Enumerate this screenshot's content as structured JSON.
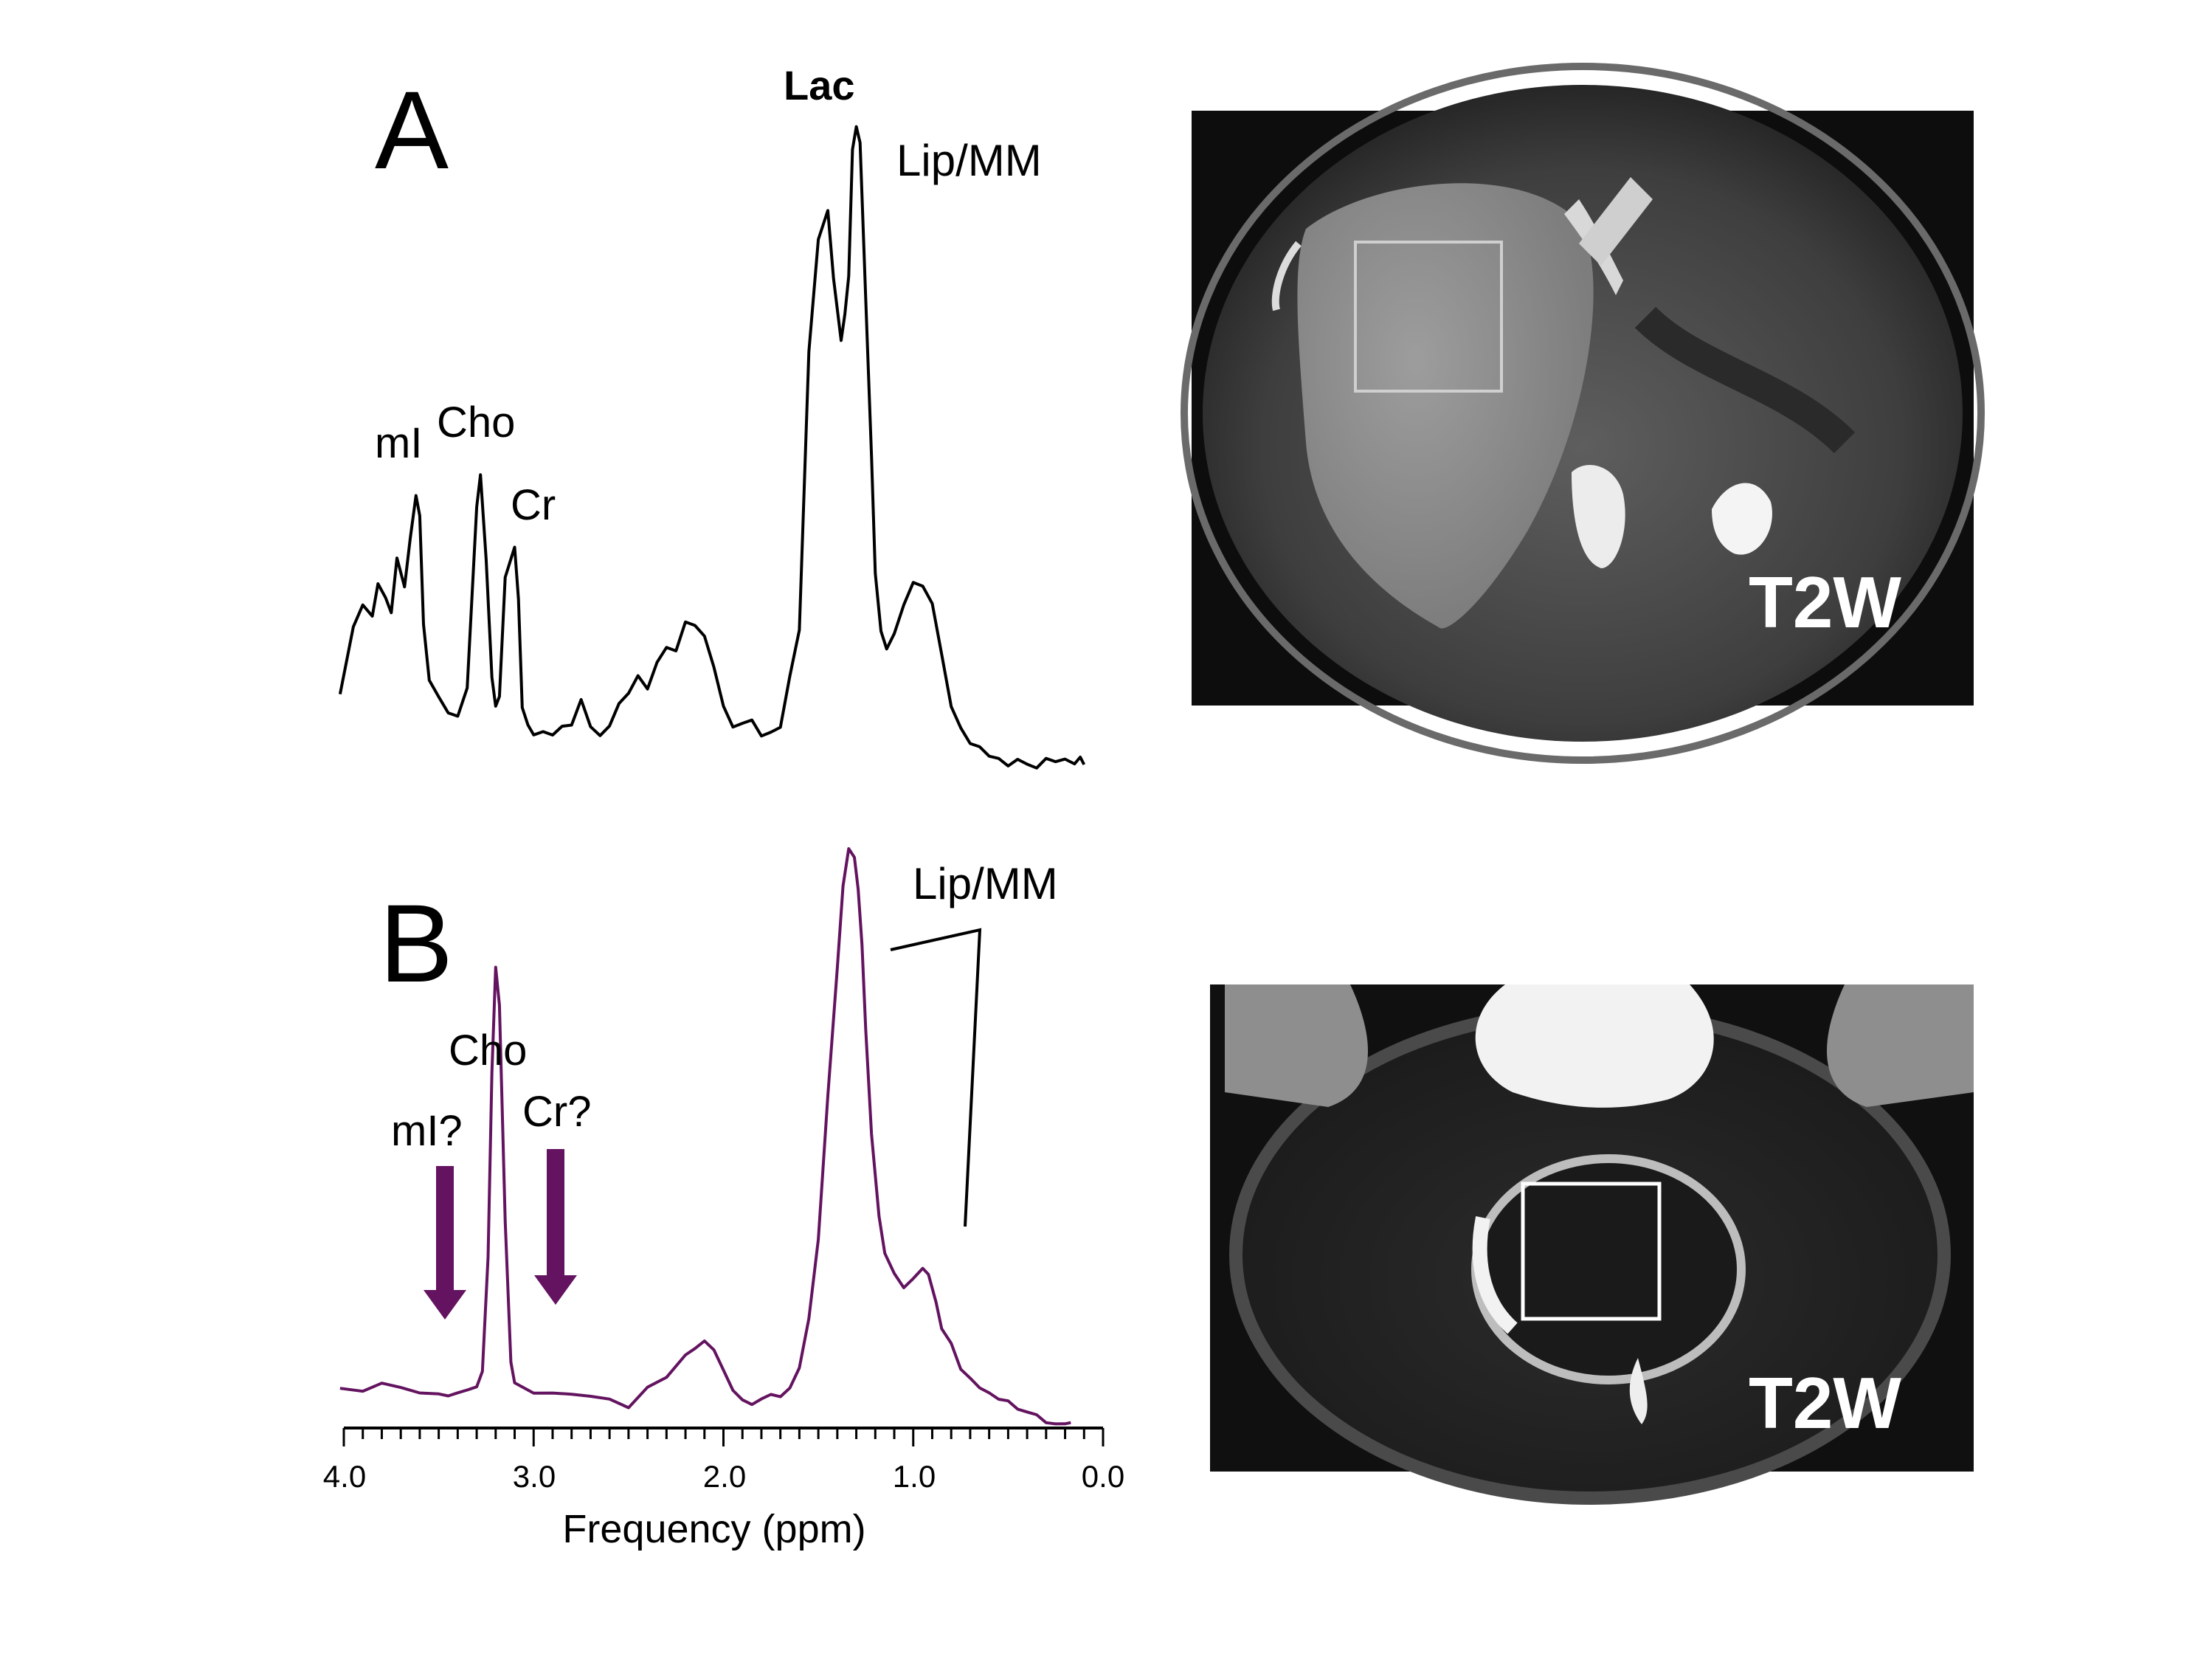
{
  "panels": {
    "a": {
      "letter": "A",
      "labels": {
        "lac": "Lac",
        "lip_mm": "Lip/MM",
        "mi": "mI",
        "cho": "Cho",
        "cr": "Cr"
      },
      "mri": {
        "label": "T2W"
      }
    },
    "b": {
      "letter": "B",
      "labels": {
        "lip_mm": "Lip/MM",
        "cho": "Cho",
        "mi": "mI?",
        "cr": "Cr?"
      },
      "mri": {
        "label": "T2W"
      }
    }
  },
  "colors": {
    "spectrum_a": "#000000",
    "spectrum_b": "#63135f",
    "arrow": "#63135f"
  },
  "chart_data": [
    {
      "type": "line",
      "panel": "A",
      "x_axis": "ppm (reversed)",
      "xlim": [
        4.0,
        0.0
      ],
      "x": [
        4.02,
        3.95,
        3.9,
        3.85,
        3.82,
        3.78,
        3.75,
        3.72,
        3.68,
        3.65,
        3.62,
        3.6,
        3.58,
        3.55,
        3.5,
        3.45,
        3.4,
        3.35,
        3.3,
        3.28,
        3.25,
        3.22,
        3.2,
        3.18,
        3.15,
        3.1,
        3.08,
        3.06,
        3.03,
        3.0,
        2.95,
        2.9,
        2.85,
        2.8,
        2.75,
        2.7,
        2.65,
        2.6,
        2.55,
        2.5,
        2.45,
        2.4,
        2.35,
        2.3,
        2.25,
        2.2,
        2.15,
        2.1,
        2.05,
        2.0,
        1.95,
        1.9,
        1.85,
        1.8,
        1.75,
        1.7,
        1.65,
        1.6,
        1.55,
        1.5,
        1.45,
        1.42,
        1.38,
        1.36,
        1.34,
        1.32,
        1.3,
        1.28,
        1.25,
        1.22,
        1.2,
        1.17,
        1.14,
        1.1,
        1.05,
        1.0,
        0.95,
        0.9,
        0.85,
        0.8,
        0.75,
        0.7,
        0.65,
        0.6,
        0.55,
        0.5,
        0.45,
        0.4,
        0.35,
        0.3,
        0.25,
        0.2,
        0.15,
        0.12,
        0.1
      ],
      "y": [
        0.12,
        0.22,
        0.25,
        0.23,
        0.28,
        0.26,
        0.24,
        0.33,
        0.29,
        0.37,
        0.44,
        0.41,
        0.24,
        0.15,
        0.12,
        0.09,
        0.08,
        0.12,
        0.4,
        0.45,
        0.32,
        0.14,
        0.1,
        0.12,
        0.31,
        0.36,
        0.28,
        0.11,
        0.08,
        0.06,
        0.06,
        0.05,
        0.06,
        0.06,
        0.1,
        0.06,
        0.05,
        0.07,
        0.11,
        0.13,
        0.16,
        0.14,
        0.18,
        0.2,
        0.19,
        0.23,
        0.22,
        0.2,
        0.15,
        0.09,
        0.06,
        0.07,
        0.08,
        0.06,
        0.07,
        0.08,
        0.16,
        0.23,
        0.66,
        0.83,
        0.87,
        0.76,
        0.66,
        0.7,
        0.76,
        0.96,
        1.0,
        0.98,
        0.74,
        0.5,
        0.32,
        0.23,
        0.2,
        0.22,
        0.26,
        0.29,
        0.28,
        0.25,
        0.17,
        0.09,
        0.06,
        0.04,
        0.04,
        0.03,
        0.03,
        0.02,
        0.03,
        0.02,
        0.01,
        0.02,
        0.01,
        0.01,
        0.0,
        0.01,
        0.0
      ]
    },
    {
      "type": "line",
      "panel": "B",
      "xlabel": "Frequency (ppm)",
      "xlim": [
        4.0,
        0.0
      ],
      "x_ticks": [
        "4.0",
        "3.0",
        "2.0",
        "1.0",
        "0.0"
      ],
      "x": [
        4.02,
        3.9,
        3.8,
        3.7,
        3.6,
        3.5,
        3.45,
        3.4,
        3.35,
        3.3,
        3.27,
        3.24,
        3.22,
        3.2,
        3.18,
        3.15,
        3.12,
        3.1,
        3.0,
        2.9,
        2.8,
        2.7,
        2.6,
        2.5,
        2.4,
        2.3,
        2.2,
        2.15,
        2.1,
        2.05,
        2.0,
        1.95,
        1.9,
        1.85,
        1.8,
        1.75,
        1.7,
        1.65,
        1.6,
        1.55,
        1.5,
        1.45,
        1.4,
        1.37,
        1.34,
        1.31,
        1.29,
        1.27,
        1.25,
        1.22,
        1.18,
        1.15,
        1.1,
        1.05,
        1.0,
        0.95,
        0.92,
        0.88,
        0.85,
        0.8,
        0.75,
        0.7,
        0.65,
        0.6,
        0.55,
        0.5,
        0.45,
        0.4,
        0.35,
        0.3,
        0.25,
        0.2,
        0.17
      ],
      "y": [
        0.06,
        0.05,
        0.06,
        0.05,
        0.04,
        0.04,
        0.04,
        0.05,
        0.06,
        0.07,
        0.1,
        0.3,
        0.62,
        0.8,
        0.73,
        0.35,
        0.1,
        0.06,
        0.04,
        0.04,
        0.04,
        0.04,
        0.04,
        0.03,
        0.07,
        0.09,
        0.13,
        0.14,
        0.15,
        0.13,
        0.09,
        0.05,
        0.03,
        0.02,
        0.03,
        0.04,
        0.04,
        0.06,
        0.1,
        0.19,
        0.33,
        0.58,
        0.8,
        0.94,
        1.0,
        0.98,
        0.92,
        0.82,
        0.67,
        0.49,
        0.35,
        0.29,
        0.26,
        0.24,
        0.26,
        0.28,
        0.27,
        0.22,
        0.17,
        0.14,
        0.09,
        0.07,
        0.05,
        0.04,
        0.03,
        0.03,
        0.02,
        0.02,
        0.02,
        0.01,
        0.01,
        0.01,
        0.01
      ]
    }
  ]
}
